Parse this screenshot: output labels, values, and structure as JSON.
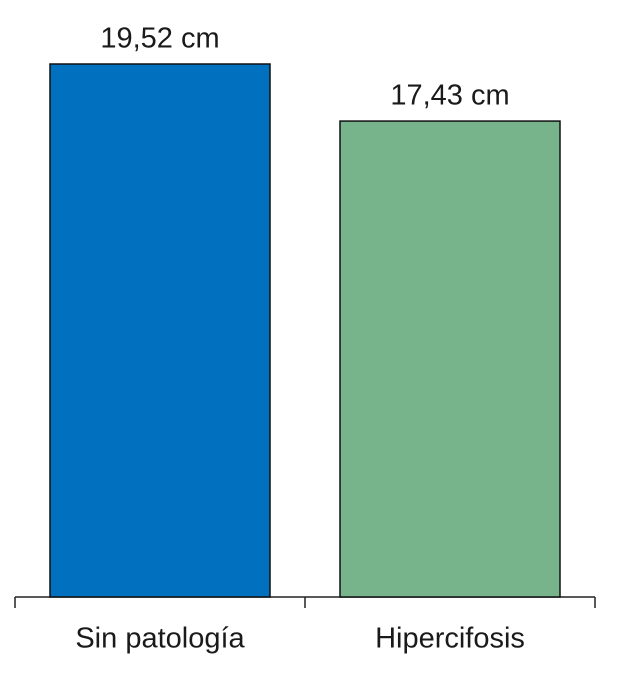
{
  "chart_data": {
    "type": "bar",
    "categories": [
      "Sin patología",
      "Hipercifosis"
    ],
    "values": [
      19.52,
      17.43
    ],
    "value_labels": [
      "19,52 cm",
      "17,43 cm"
    ],
    "colors": [
      "#0070bf",
      "#77b38b"
    ]
  }
}
